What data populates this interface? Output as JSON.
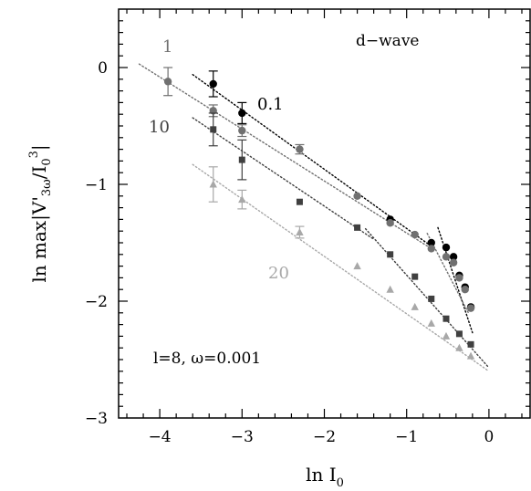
{
  "chart_data": {
    "type": "scatter",
    "xlim": [
      -4.5,
      0.5
    ],
    "ylim": [
      -3,
      0.5
    ],
    "xticks": [
      -4,
      -3,
      -2,
      -1,
      0
    ],
    "yticks": [
      -3,
      -2,
      -1,
      0
    ],
    "xtick_labels": [
      "−4",
      "−3",
      "−2",
      "−1",
      "0"
    ],
    "ytick_labels": [
      "−3",
      "−2",
      "−1",
      "0"
    ],
    "xlabel": {
      "prefix": "ln I",
      "sub": "0"
    },
    "ylabel": {
      "a": "ln max|V'",
      "sub1": "3ω",
      "b": "/I",
      "sub2": "0",
      "sup": "3",
      "c": "|"
    },
    "annotations": {
      "top_right": "d−wave",
      "bottom_left": "l=8,  ω=0.001"
    },
    "grid": false,
    "series": [
      {
        "name": "0.1",
        "color": "#000000",
        "marker": "circle",
        "points": [
          {
            "x": -3.35,
            "y": -0.14,
            "err": 0.11
          },
          {
            "x": -3.0,
            "y": -0.39,
            "err": 0.09
          },
          {
            "x": -1.2,
            "y": -1.3,
            "err": 0.02
          },
          {
            "x": -0.7,
            "y": -1.5,
            "err": 0.02
          },
          {
            "x": -0.52,
            "y": -1.54,
            "err": 0.02
          },
          {
            "x": -0.43,
            "y": -1.62,
            "err": 0.02
          },
          {
            "x": -0.36,
            "y": -1.78,
            "err": 0.02
          },
          {
            "x": -0.29,
            "y": -1.88,
            "err": 0.02
          },
          {
            "x": -0.22,
            "y": -2.05,
            "err": 0.02
          }
        ],
        "fit_lines": [
          {
            "x": [
              -3.6,
              -0.7
            ],
            "y": [
              -0.06,
              -1.53
            ]
          },
          {
            "x": [
              -0.62,
              -0.2
            ],
            "y": [
              -1.37,
              -2.27
            ]
          }
        ]
      },
      {
        "name": "1",
        "color": "#707070",
        "marker": "circle",
        "points": [
          {
            "x": -3.9,
            "y": -0.12,
            "err": 0.12
          },
          {
            "x": -3.35,
            "y": -0.37,
            "err": 0.05
          },
          {
            "x": -3.0,
            "y": -0.54,
            "err": 0.05
          },
          {
            "x": -2.3,
            "y": -0.7,
            "err": 0.04
          },
          {
            "x": -1.6,
            "y": -1.1,
            "err": 0.02
          },
          {
            "x": -1.2,
            "y": -1.33,
            "err": 0.02
          },
          {
            "x": -0.9,
            "y": -1.43,
            "err": 0.02
          },
          {
            "x": -0.7,
            "y": -1.55,
            "err": 0.02
          },
          {
            "x": -0.52,
            "y": -1.62,
            "err": 0.02
          },
          {
            "x": -0.43,
            "y": -1.67,
            "err": 0.02
          },
          {
            "x": -0.36,
            "y": -1.8,
            "err": 0.02
          },
          {
            "x": -0.29,
            "y": -1.9,
            "err": 0.02
          },
          {
            "x": -0.22,
            "y": -2.06,
            "err": 0.02
          }
        ],
        "fit_lines": [
          {
            "x": [
              -4.25,
              -0.7
            ],
            "y": [
              0.03,
              -1.55
            ]
          },
          {
            "x": [
              -0.75,
              -0.25
            ],
            "y": [
              -1.42,
              -2.1
            ]
          }
        ]
      },
      {
        "name": "10",
        "color": "#404040",
        "marker": "square",
        "points": [
          {
            "x": -3.35,
            "y": -0.53,
            "err": 0.14
          },
          {
            "x": -3.0,
            "y": -0.79,
            "err": 0.17
          },
          {
            "x": -2.3,
            "y": -1.15,
            "err": 0.02
          },
          {
            "x": -1.6,
            "y": -1.37,
            "err": 0.02
          },
          {
            "x": -1.2,
            "y": -1.6,
            "err": 0.02
          },
          {
            "x": -0.9,
            "y": -1.79,
            "err": 0.02
          },
          {
            "x": -0.7,
            "y": -1.98,
            "err": 0.02
          },
          {
            "x": -0.52,
            "y": -2.15,
            "err": 0.02
          },
          {
            "x": -0.36,
            "y": -2.28,
            "err": 0.02
          },
          {
            "x": -0.22,
            "y": -2.37,
            "err": 0.02
          }
        ],
        "fit_lines": [
          {
            "x": [
              -3.6,
              -1.4
            ],
            "y": [
              -0.43,
              -1.47
            ]
          },
          {
            "x": [
              -1.5,
              0.0
            ],
            "y": [
              -1.38,
              -2.57
            ]
          }
        ]
      },
      {
        "name": "20",
        "color": "#a8a8a8",
        "marker": "triangle",
        "points": [
          {
            "x": -3.35,
            "y": -1.0,
            "err": 0.15
          },
          {
            "x": -3.0,
            "y": -1.13,
            "err": 0.08
          },
          {
            "x": -2.3,
            "y": -1.41,
            "err": 0.05
          },
          {
            "x": -1.6,
            "y": -1.7,
            "err": 0.02
          },
          {
            "x": -1.2,
            "y": -1.9,
            "err": 0.02
          },
          {
            "x": -0.9,
            "y": -2.05,
            "err": 0.02
          },
          {
            "x": -0.7,
            "y": -2.19,
            "err": 0.02
          },
          {
            "x": -0.52,
            "y": -2.3,
            "err": 0.02
          },
          {
            "x": -0.36,
            "y": -2.4,
            "err": 0.02
          },
          {
            "x": -0.22,
            "y": -2.47,
            "err": 0.02
          }
        ],
        "fit_lines": [
          {
            "x": [
              -3.6,
              0.0
            ],
            "y": [
              -0.83,
              -2.6
            ]
          }
        ]
      }
    ]
  }
}
